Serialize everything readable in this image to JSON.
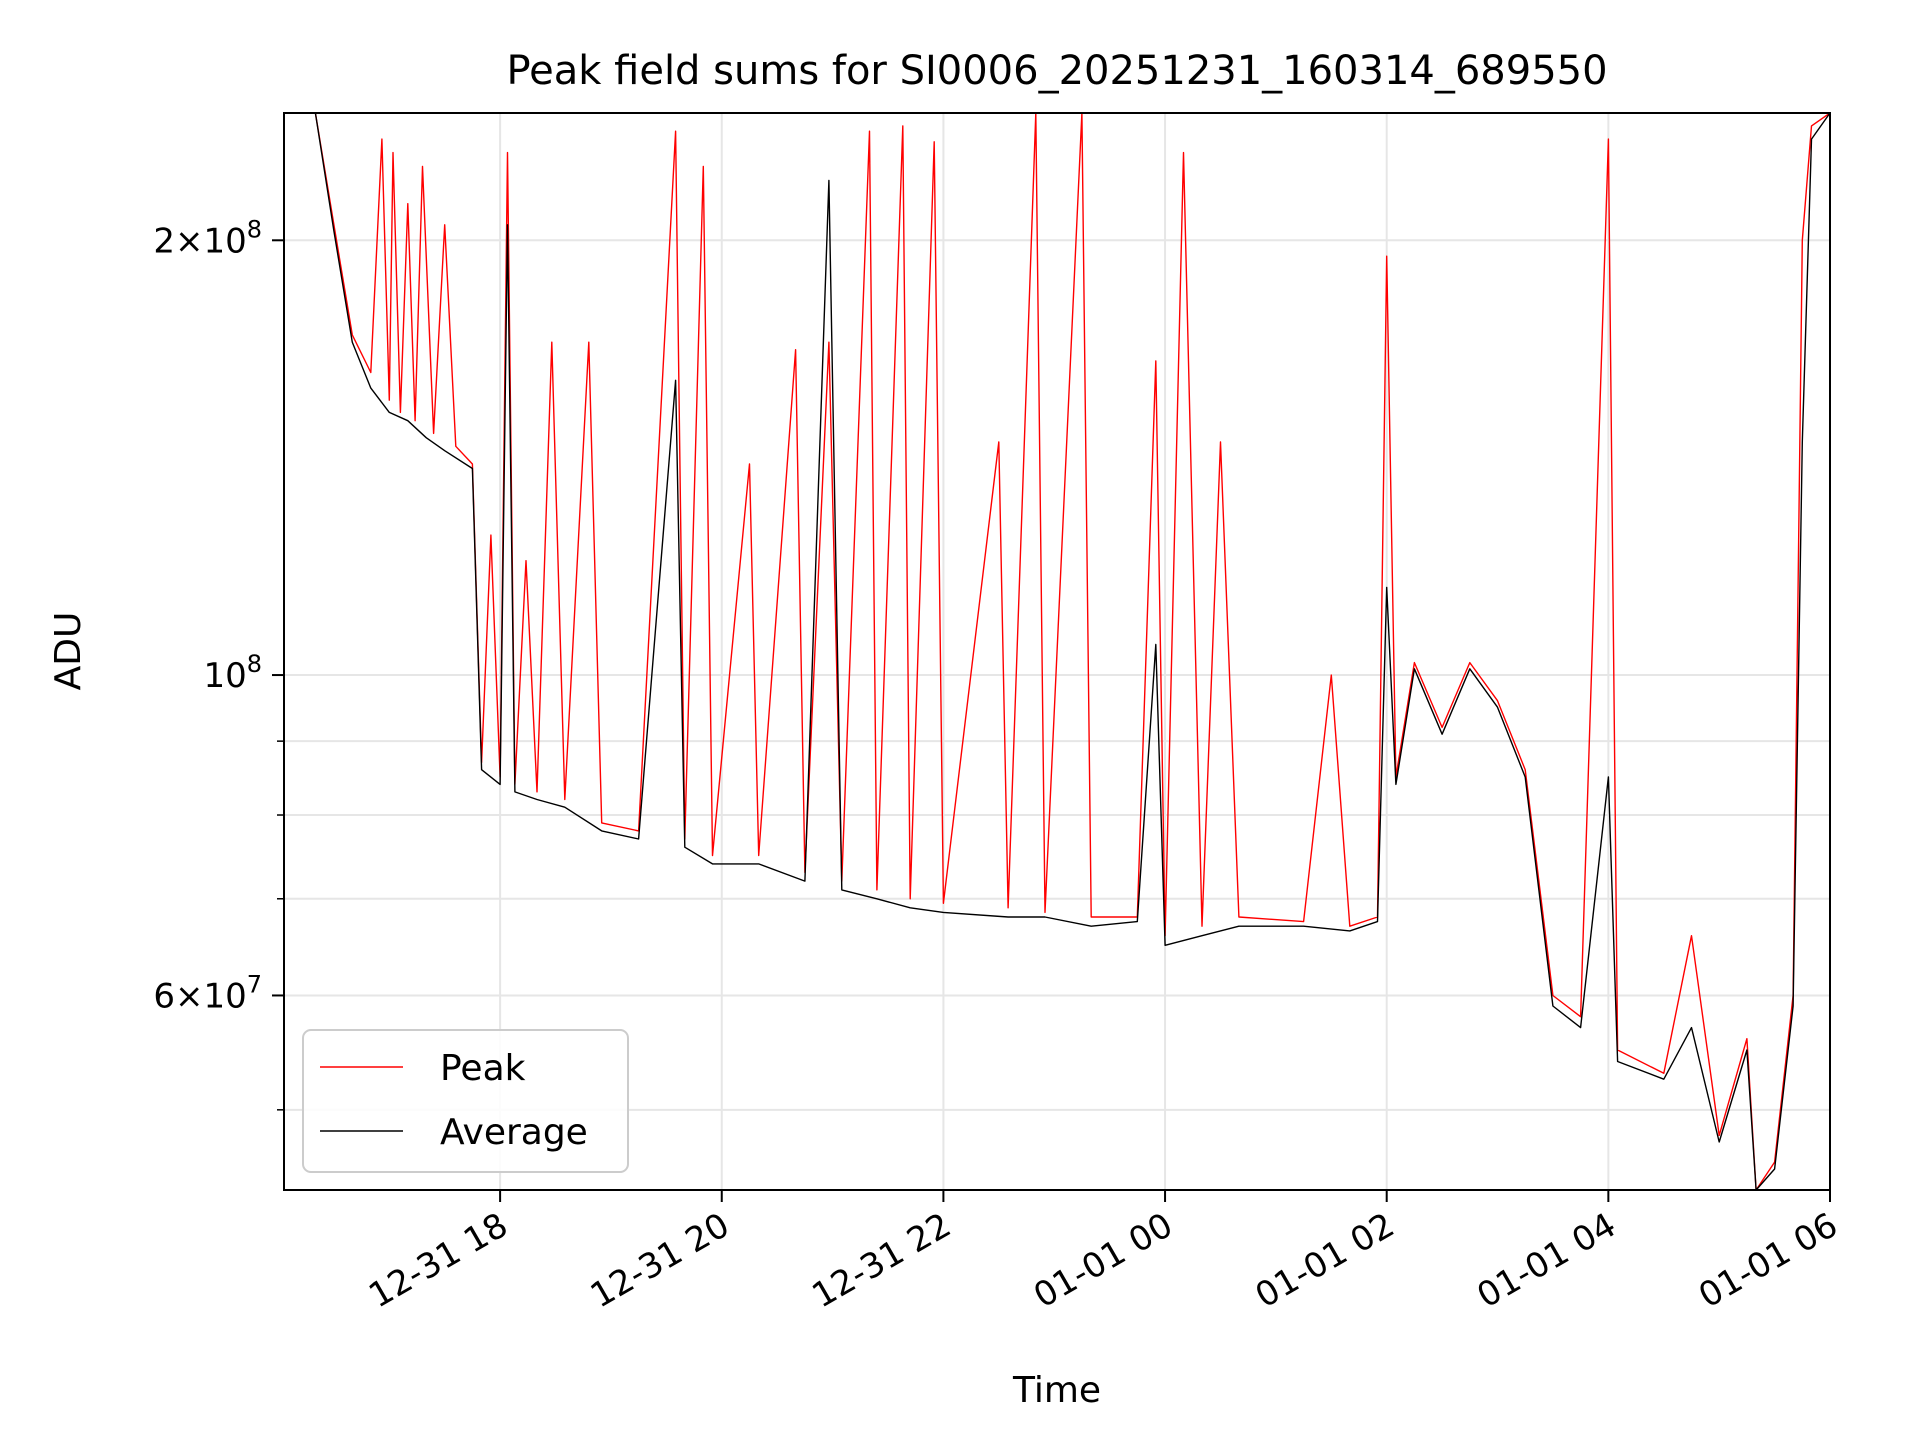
{
  "chart_data": {
    "type": "line",
    "title": "Peak field sums for SI0006_20251231_160314_689550",
    "xlabel": "Time",
    "ylabel": "ADU",
    "y_scale": "log",
    "ylim": [
      44000000,
      245000000
    ],
    "xlim": [
      "2025-12-31 16:03",
      "2026-01-01 06:00"
    ],
    "grid": true,
    "legend_position": "lower-left",
    "x_ticks": [
      {
        "label": "12-31 18",
        "value": "2025-12-31 18:00"
      },
      {
        "label": "12-31 20",
        "value": "2025-12-31 20:00"
      },
      {
        "label": "12-31 22",
        "value": "2025-12-31 22:00"
      },
      {
        "label": "01-01 00",
        "value": "2026-01-01 00:00"
      },
      {
        "label": "01-01 02",
        "value": "2026-01-01 02:00"
      },
      {
        "label": "01-01 04",
        "value": "2026-01-01 04:00"
      },
      {
        "label": "01-01 06",
        "value": "2026-01-01 06:00"
      }
    ],
    "y_ticks": [
      {
        "base": "6",
        "exp": "7",
        "value": 60000000
      },
      {
        "base": "",
        "exp": "8",
        "value": 100000000
      },
      {
        "base": "2",
        "exp": "8",
        "value": 200000000
      }
    ],
    "series": [
      {
        "name": "Peak",
        "color": "#ff0000",
        "points": [
          [
            "2025-12-31 16:03",
            245000000
          ],
          [
            "2025-12-31 16:20",
            245000000
          ],
          [
            "2025-12-31 16:30",
            205000000
          ],
          [
            "2025-12-31 16:40",
            172000000
          ],
          [
            "2025-12-31 16:50",
            162000000
          ],
          [
            "2025-12-31 16:56",
            235000000
          ],
          [
            "2025-12-31 17:00",
            155000000
          ],
          [
            "2025-12-31 17:02",
            230000000
          ],
          [
            "2025-12-31 17:06",
            152000000
          ],
          [
            "2025-12-31 17:10",
            212000000
          ],
          [
            "2025-12-31 17:14",
            150000000
          ],
          [
            "2025-12-31 17:18",
            225000000
          ],
          [
            "2025-12-31 17:24",
            147000000
          ],
          [
            "2025-12-31 17:30",
            205000000
          ],
          [
            "2025-12-31 17:36",
            144000000
          ],
          [
            "2025-12-31 17:45",
            140000000
          ],
          [
            "2025-12-31 17:50",
            87000000
          ],
          [
            "2025-12-31 17:55",
            125000000
          ],
          [
            "2025-12-31 18:00",
            85000000
          ],
          [
            "2025-12-31 18:04",
            230000000
          ],
          [
            "2025-12-31 18:08",
            84000000
          ],
          [
            "2025-12-31 18:14",
            120000000
          ],
          [
            "2025-12-31 18:20",
            83000000
          ],
          [
            "2025-12-31 18:28",
            170000000
          ],
          [
            "2025-12-31 18:35",
            82000000
          ],
          [
            "2025-12-31 18:48",
            170000000
          ],
          [
            "2025-12-31 18:55",
            79000000
          ],
          [
            "2025-12-31 19:15",
            78000000
          ],
          [
            "2025-12-31 19:35",
            238000000
          ],
          [
            "2025-12-31 19:40",
            77000000
          ],
          [
            "2025-12-31 19:50",
            225000000
          ],
          [
            "2025-12-31 19:55",
            75000000
          ],
          [
            "2025-12-31 20:15",
            140000000
          ],
          [
            "2025-12-31 20:20",
            75000000
          ],
          [
            "2025-12-31 20:40",
            168000000
          ],
          [
            "2025-12-31 20:45",
            73000000
          ],
          [
            "2025-12-31 20:58",
            170000000
          ],
          [
            "2025-12-31 21:05",
            72000000
          ],
          [
            "2025-12-31 21:20",
            238000000
          ],
          [
            "2025-12-31 21:24",
            71000000
          ],
          [
            "2025-12-31 21:38",
            240000000
          ],
          [
            "2025-12-31 21:42",
            70000000
          ],
          [
            "2025-12-31 21:55",
            234000000
          ],
          [
            "2025-12-31 22:00",
            69500000
          ],
          [
            "2025-12-31 22:30",
            145000000
          ],
          [
            "2025-12-31 22:35",
            69000000
          ],
          [
            "2025-12-31 22:50",
            245000000
          ],
          [
            "2025-12-31 22:55",
            68500000
          ],
          [
            "2025-12-31 23:15",
            245000000
          ],
          [
            "2025-12-31 23:20",
            68000000
          ],
          [
            "2025-12-31 23:45",
            68000000
          ],
          [
            "2025-12-31 23:55",
            165000000
          ],
          [
            "2026-01-01 00:00",
            66000000
          ],
          [
            "2026-01-01 00:10",
            230000000
          ],
          [
            "2026-01-01 00:20",
            67000000
          ],
          [
            "2026-01-01 00:30",
            145000000
          ],
          [
            "2026-01-01 00:40",
            68000000
          ],
          [
            "2026-01-01 01:15",
            67500000
          ],
          [
            "2026-01-01 01:30",
            100000000
          ],
          [
            "2026-01-01 01:40",
            67000000
          ],
          [
            "2026-01-01 01:55",
            68000000
          ],
          [
            "2026-01-01 02:00",
            195000000
          ],
          [
            "2026-01-01 02:05",
            85000000
          ],
          [
            "2026-01-01 02:15",
            102000000
          ],
          [
            "2026-01-01 02:30",
            92000000
          ],
          [
            "2026-01-01 02:45",
            102000000
          ],
          [
            "2026-01-01 03:00",
            96000000
          ],
          [
            "2026-01-01 03:15",
            86000000
          ],
          [
            "2026-01-01 03:30",
            60000000
          ],
          [
            "2026-01-01 03:45",
            58000000
          ],
          [
            "2026-01-01 04:00",
            235000000
          ],
          [
            "2026-01-01 04:05",
            55000000
          ],
          [
            "2026-01-01 04:30",
            53000000
          ],
          [
            "2026-01-01 04:45",
            66000000
          ],
          [
            "2026-01-01 05:00",
            48000000
          ],
          [
            "2026-01-01 05:15",
            56000000
          ],
          [
            "2026-01-01 05:20",
            44000000
          ],
          [
            "2026-01-01 05:30",
            46000000
          ],
          [
            "2026-01-01 05:40",
            60000000
          ],
          [
            "2026-01-01 05:45",
            200000000
          ],
          [
            "2026-01-01 05:50",
            240000000
          ],
          [
            "2026-01-01 06:00",
            245000000
          ]
        ]
      },
      {
        "name": "Average",
        "color": "#000000",
        "points": [
          [
            "2025-12-31 16:03",
            245000000
          ],
          [
            "2025-12-31 16:20",
            245000000
          ],
          [
            "2025-12-31 16:30",
            203000000
          ],
          [
            "2025-12-31 16:40",
            170000000
          ],
          [
            "2025-12-31 16:50",
            158000000
          ],
          [
            "2025-12-31 17:00",
            152000000
          ],
          [
            "2025-12-31 17:10",
            150000000
          ],
          [
            "2025-12-31 17:20",
            146000000
          ],
          [
            "2025-12-31 17:30",
            143000000
          ],
          [
            "2025-12-31 17:45",
            139000000
          ],
          [
            "2025-12-31 17:50",
            86000000
          ],
          [
            "2025-12-31 18:00",
            84000000
          ],
          [
            "2025-12-31 18:04",
            205000000
          ],
          [
            "2025-12-31 18:08",
            83000000
          ],
          [
            "2025-12-31 18:20",
            82000000
          ],
          [
            "2025-12-31 18:35",
            81000000
          ],
          [
            "2025-12-31 18:55",
            78000000
          ],
          [
            "2025-12-31 19:15",
            77000000
          ],
          [
            "2025-12-31 19:35",
            160000000
          ],
          [
            "2025-12-31 19:40",
            76000000
          ],
          [
            "2025-12-31 19:55",
            74000000
          ],
          [
            "2025-12-31 20:20",
            74000000
          ],
          [
            "2025-12-31 20:45",
            72000000
          ],
          [
            "2025-12-31 20:58",
            220000000
          ],
          [
            "2025-12-31 21:05",
            71000000
          ],
          [
            "2025-12-31 21:24",
            70000000
          ],
          [
            "2025-12-31 21:42",
            69000000
          ],
          [
            "2025-12-31 22:00",
            68500000
          ],
          [
            "2025-12-31 22:35",
            68000000
          ],
          [
            "2025-12-31 22:55",
            68000000
          ],
          [
            "2025-12-31 23:20",
            67000000
          ],
          [
            "2025-12-31 23:45",
            67500000
          ],
          [
            "2025-12-31 23:55",
            105000000
          ],
          [
            "2026-01-01 00:00",
            65000000
          ],
          [
            "2026-01-01 00:20",
            66000000
          ],
          [
            "2026-01-01 00:40",
            67000000
          ],
          [
            "2026-01-01 01:15",
            67000000
          ],
          [
            "2026-01-01 01:40",
            66500000
          ],
          [
            "2026-01-01 01:55",
            67500000
          ],
          [
            "2026-01-01 02:00",
            115000000
          ],
          [
            "2026-01-01 02:05",
            84000000
          ],
          [
            "2026-01-01 02:15",
            101000000
          ],
          [
            "2026-01-01 02:30",
            91000000
          ],
          [
            "2026-01-01 02:45",
            101000000
          ],
          [
            "2026-01-01 03:00",
            95000000
          ],
          [
            "2026-01-01 03:15",
            85000000
          ],
          [
            "2026-01-01 03:30",
            59000000
          ],
          [
            "2026-01-01 03:45",
            57000000
          ],
          [
            "2026-01-01 04:00",
            85000000
          ],
          [
            "2026-01-01 04:05",
            54000000
          ],
          [
            "2026-01-01 04:30",
            52500000
          ],
          [
            "2026-01-01 04:45",
            57000000
          ],
          [
            "2026-01-01 05:00",
            47500000
          ],
          [
            "2026-01-01 05:15",
            55000000
          ],
          [
            "2026-01-01 05:20",
            44000000
          ],
          [
            "2026-01-01 05:30",
            45500000
          ],
          [
            "2026-01-01 05:40",
            59000000
          ],
          [
            "2026-01-01 05:45",
            145000000
          ],
          [
            "2026-01-01 05:50",
            235000000
          ],
          [
            "2026-01-01 06:00",
            245000000
          ]
        ]
      }
    ]
  }
}
